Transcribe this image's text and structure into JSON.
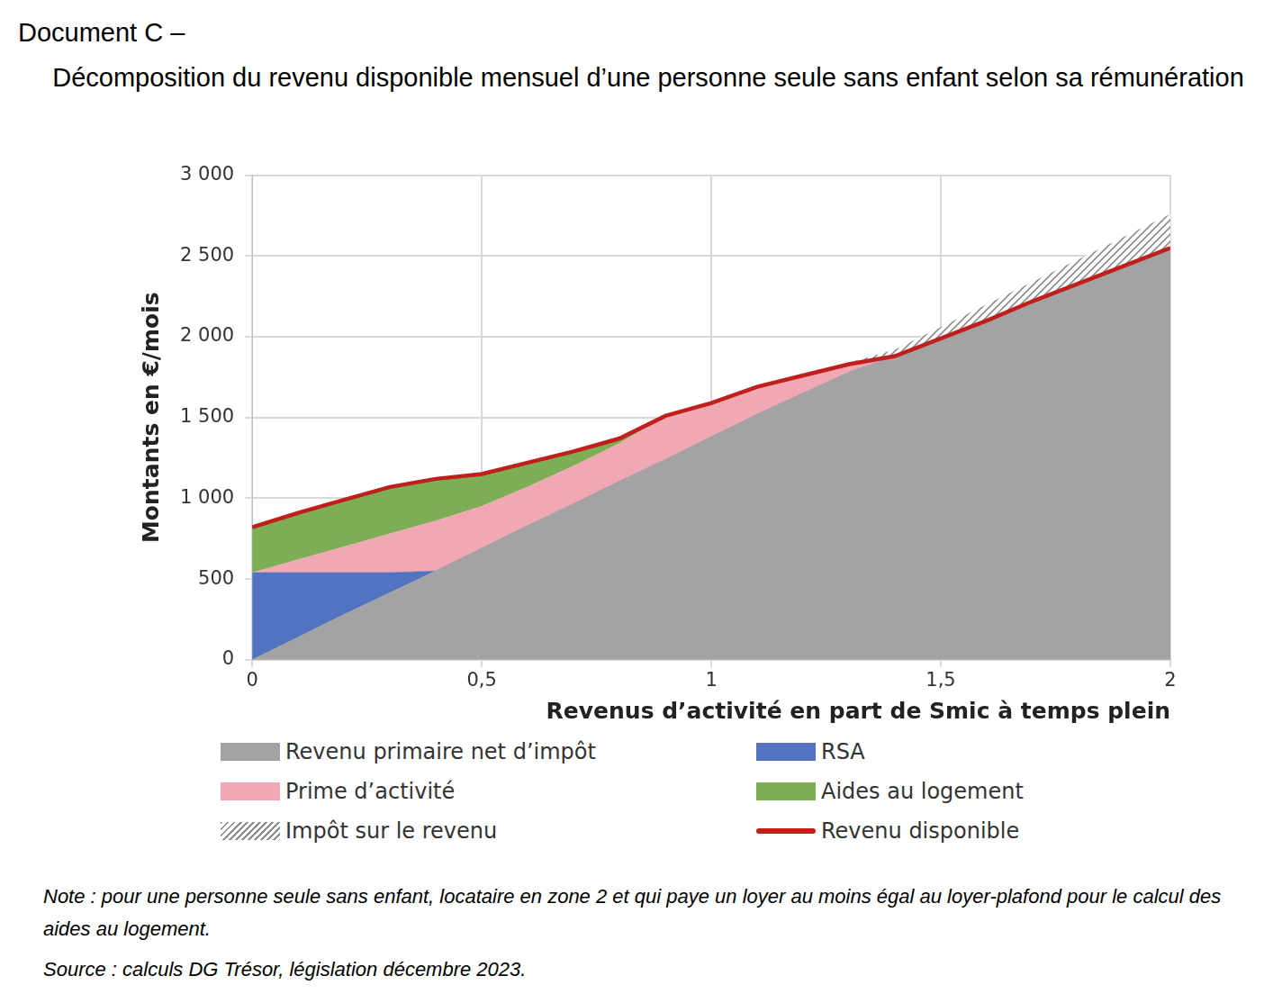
{
  "header": "Document C –",
  "note": "Note : pour une personne seule sans enfant, locataire en zone 2 et qui paye un loyer au moins égal au loyer-plafond pour le calcul des aides au logement.",
  "source": "Source : calculs DG Trésor, législation décembre 2023.",
  "chart_data": {
    "type": "area",
    "title": "Décomposition du revenu disponible mensuel d’une personne seule sans enfant selon sa rémunération",
    "x_label": "Revenus d’activité en part de Smic à temps plein",
    "y_label": "Montants en €/mois",
    "x": [
      0,
      0.1,
      0.2,
      0.3,
      0.4,
      0.5,
      0.6,
      0.7,
      0.8,
      0.9,
      1.0,
      1.1,
      1.2,
      1.3,
      1.4,
      1.5,
      1.6,
      1.7,
      1.8,
      1.9,
      2.0
    ],
    "series": [
      {
        "name": "Revenu primaire net d’impôt",
        "color": "#a3a3a3",
        "type": "area",
        "values": [
          0,
          140,
          280,
          415,
          550,
          690,
          830,
          965,
          1105,
          1240,
          1380,
          1520,
          1650,
          1780,
          1880,
          1990,
          2100,
          2220,
          2330,
          2440,
          2550
        ]
      },
      {
        "name": "RSA",
        "color": "#5173c0",
        "type": "area",
        "values": [
          540,
          400,
          260,
          125,
          0,
          0,
          0,
          0,
          0,
          0,
          0,
          0,
          0,
          0,
          0,
          0,
          0,
          0,
          0,
          0,
          0
        ]
      },
      {
        "name": "Prime d’activité",
        "color": "#f0a8b3",
        "type": "area",
        "values": [
          0,
          80,
          160,
          240,
          310,
          260,
          240,
          235,
          235,
          270,
          210,
          170,
          110,
          50,
          0,
          0,
          0,
          0,
          0,
          0,
          0
        ]
      },
      {
        "name": "Aides au logement",
        "color": "#7dad55",
        "type": "area",
        "values": [
          280,
          290,
          290,
          290,
          260,
          200,
          150,
          90,
          30,
          0,
          0,
          0,
          0,
          0,
          0,
          0,
          0,
          0,
          0,
          0,
          0
        ]
      },
      {
        "name": "Impôt sur le revenu",
        "color": "#8c8c8c",
        "type": "area",
        "line_style": "hatched",
        "values": [
          0,
          0,
          0,
          0,
          0,
          0,
          0,
          0,
          0,
          0,
          0,
          0,
          0,
          10,
          40,
          70,
          100,
          120,
          150,
          180,
          210
        ]
      },
      {
        "name": "Revenu disponible",
        "color": "#c0201c",
        "type": "line",
        "values": [
          820,
          910,
          990,
          1070,
          1120,
          1150,
          1220,
          1290,
          1370,
          1510,
          1590,
          1690,
          1760,
          1830,
          1880,
          1990,
          2100,
          2220,
          2330,
          2440,
          2550
        ]
      }
    ],
    "xlim": [
      0,
      2
    ],
    "xticks": [
      0,
      {
        "value": 0.5,
        "label": "0,5"
      },
      1,
      {
        "value": 1.5,
        "label": "1,5"
      },
      2
    ],
    "ylim": [
      0,
      3000
    ],
    "yticks": [
      0,
      500,
      {
        "value": 1000,
        "label": "1 000"
      },
      {
        "value": 1500,
        "label": "1 500"
      },
      {
        "value": 2000,
        "label": "2 000"
      },
      {
        "value": 2500,
        "label": "2 500"
      },
      {
        "value": 3000,
        "label": "3 000"
      }
    ],
    "stacked": true,
    "grid": true,
    "legend": "bottom"
  }
}
